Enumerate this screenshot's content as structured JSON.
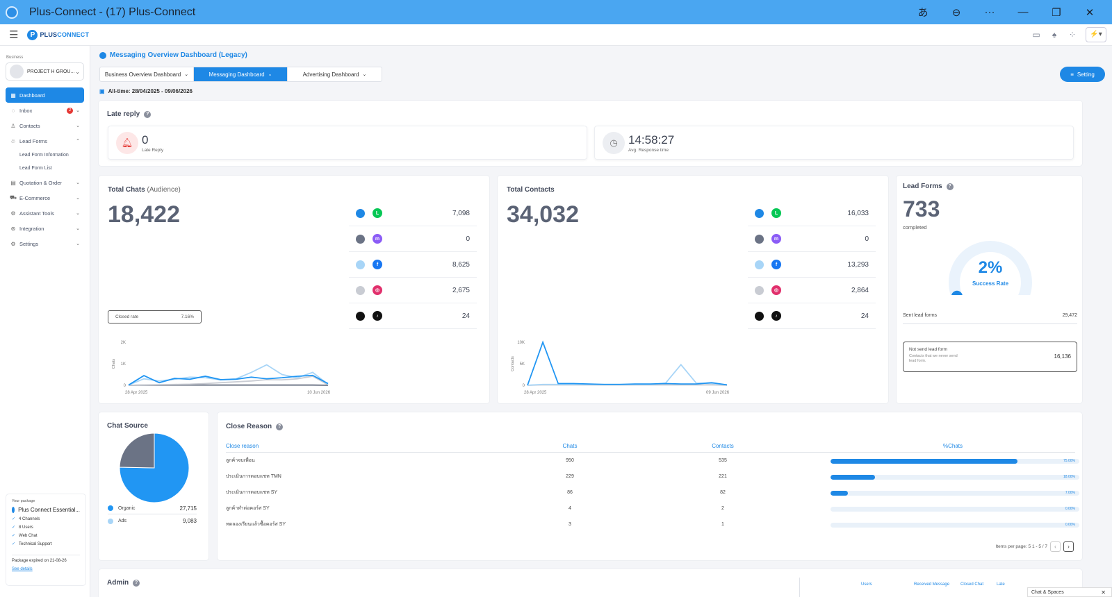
{
  "window": {
    "title": "Plus-Connect - (17) Plus-Connect",
    "controls": [
      "あ",
      "⊖",
      "···",
      "—",
      "❐",
      "✕"
    ]
  },
  "topbar": {
    "logo_mark": "P",
    "logo_left": "PLUS",
    "logo_right": "CONNECT"
  },
  "sidebar": {
    "business_label": "Business",
    "business_name": "PROJECT H GROU...",
    "items": [
      {
        "label": "Dashboard",
        "icon": "grid-icon"
      },
      {
        "label": "Inbox",
        "icon": "chat-icon",
        "badge": "2"
      },
      {
        "label": "Contacts",
        "icon": "person-icon"
      },
      {
        "label": "Lead Forms",
        "icon": "form-icon"
      },
      {
        "label": "Quotation & Order",
        "icon": "doc-icon"
      },
      {
        "label": "E-Commerce",
        "icon": "cart-icon"
      },
      {
        "label": "Assistant Tools",
        "icon": "tools-icon"
      },
      {
        "label": "Integration",
        "icon": "gear-icon"
      },
      {
        "label": "Settings",
        "icon": "settings-icon"
      }
    ],
    "lead_form_sub": [
      "Lead Form Information",
      "Lead Form List"
    ],
    "package": {
      "label": "Your package",
      "name": "Plus Connect Essential...",
      "features": [
        "4 Channels",
        "8 Users",
        "Web Chat",
        "Technical Support"
      ],
      "expiry": "Package expired on 21-08-26",
      "link": "See details"
    }
  },
  "main": {
    "title": "Messaging Overview Dashboard (Legacy)",
    "tabs": [
      "Business Overview Dashboard",
      "Messaging Dashboard",
      "Advertising Dashboard"
    ],
    "setting_label": "Setting",
    "date_range": "All-time: 28/04/2025 - 09/06/2026"
  },
  "late_reply": {
    "title": "Late reply",
    "late_value": "0",
    "late_label": "Late Reply",
    "avg_value": "14:58:27",
    "avg_label": "Avg. Response time"
  },
  "total_chats": {
    "title": "Total Chats",
    "title_suffix": "(Audience)",
    "total": "18,422",
    "channels": [
      "7,098",
      "0",
      "8,625",
      "2,675",
      "24"
    ],
    "closed_rate_label": "Closed rate",
    "closed_rate_value": "7.16%",
    "y_axis_title": "Chats",
    "y_ticks": [
      "2K",
      "1K",
      "0"
    ],
    "x_ticks": [
      "28 Apr 2025",
      "10 Jun 2026"
    ]
  },
  "total_contacts": {
    "title": "Total Contacts",
    "total": "34,032",
    "channels": [
      "16,033",
      "0",
      "13,293",
      "2,864",
      "24"
    ],
    "y_axis_title": "Contacts",
    "y_ticks": [
      "10K",
      "5K",
      "0"
    ],
    "x_ticks": [
      "28 Apr 2025",
      "09 Jun 2026"
    ]
  },
  "channel_styles": [
    {
      "name": "LINE",
      "dot": "#1e88e5",
      "icon_bg": "#06c755",
      "glyph": "L"
    },
    {
      "name": "Messenger",
      "dot": "#6b7385",
      "icon_bg": "#8b5cf6",
      "glyph": "m"
    },
    {
      "name": "Facebook",
      "dot": "#a8d5f7",
      "icon_bg": "#1877f2",
      "glyph": "f"
    },
    {
      "name": "Instagram",
      "dot": "#c9ccd3",
      "icon_bg": "#e1306c",
      "glyph": "◎"
    },
    {
      "name": "TikTok",
      "dot": "#111111",
      "icon_bg": "#111111",
      "glyph": "♪"
    }
  ],
  "lead_forms": {
    "title": "Lead Forms",
    "total": "733",
    "sub": "completed",
    "gauge_value": "2%",
    "gauge_fraction": 0.02,
    "gauge_label": "Success Rate",
    "sent_label": "Sent lead forms",
    "sent_value": "29,472",
    "not_sent_label": "Not send lead form",
    "not_sent_desc": "Contacts that we never send lead form.",
    "not_sent_value": "16,136"
  },
  "chat_source": {
    "title": "Chat Source",
    "items": [
      {
        "label": "Organic",
        "value": "27,715",
        "color": "#2196f3"
      },
      {
        "label": "Ads",
        "value": "9,083",
        "color": "#a8d5f7"
      }
    ]
  },
  "close_reason": {
    "title": "Close Reason",
    "headers": [
      "Close reason",
      "Chats",
      "Contacts",
      "%Chats"
    ],
    "rows": [
      {
        "reason": "ลูกค้าจบเพื่อน",
        "chats": "950",
        "contacts": "535",
        "pct": "75.00%",
        "pct_value": 0.75
      },
      {
        "reason": "ประเมินการตอบแชท TMN",
        "chats": "229",
        "contacts": "221",
        "pct": "18.00%",
        "pct_value": 0.18
      },
      {
        "reason": "ประเมินการตอบแชท SY",
        "chats": "86",
        "contacts": "82",
        "pct": "7.00%",
        "pct_value": 0.07
      },
      {
        "reason": "ลูกค้าทำต่อคอร์ส SY",
        "chats": "4",
        "contacts": "2",
        "pct": "0.00%",
        "pct_value": 0
      },
      {
        "reason": "ทดลองเรียนแล้วซื้อคอร์ส SY",
        "chats": "3",
        "contacts": "1",
        "pct": "0.00%",
        "pct_value": 0
      }
    ],
    "items_per_page_label": "Items per page:",
    "items_per_page": "5",
    "range": "1 - 5 / 7"
  },
  "admin": {
    "title": "Admin",
    "headers": [
      "Users",
      "Received Message",
      "Closed Chat",
      "Late"
    ]
  },
  "chat_spaces": "Chat & Spaces",
  "chart_data": [
    {
      "type": "line",
      "x": [
        "28 Apr 2025",
        "",
        "",
        "",
        "",
        "",
        "",
        "",
        "",
        "",
        "",
        "",
        "",
        "10 Jun 2026"
      ],
      "ylabel": "Chats",
      "ylim": [
        0,
        2000
      ],
      "series": [
        {
          "values": [
            10,
            450,
            120,
            320,
            280,
            420,
            260,
            280,
            380,
            300,
            350,
            420,
            460,
            80
          ],
          "color": "#2196f3"
        },
        {
          "values": [
            10,
            300,
            200,
            280,
            380,
            350,
            250,
            300,
            600,
            950,
            500,
            350,
            600,
            40
          ],
          "color": "#a8d5f7"
        },
        {
          "values": [
            0,
            20,
            30,
            40,
            50,
            80,
            120,
            160,
            200,
            260,
            250,
            300,
            420,
            20
          ],
          "color": "#c9ccd3"
        },
        {
          "values": [
            0,
            10,
            10,
            10,
            10,
            10,
            10,
            10,
            10,
            10,
            10,
            10,
            10,
            0
          ],
          "color": "#6b7385"
        }
      ]
    },
    {
      "type": "line",
      "x": [
        "28 Apr 2025",
        "",
        "",
        "",
        "",
        "",
        "",
        "",
        "",
        "",
        "",
        "",
        "",
        "09 Jun 2026"
      ],
      "ylabel": "Contacts",
      "ylim": [
        0,
        10000
      ],
      "series": [
        {
          "values": [
            0,
            10000,
            400,
            400,
            300,
            200,
            200,
            300,
            300,
            400,
            300,
            300,
            600,
            100
          ],
          "color": "#2196f3"
        },
        {
          "values": [
            0,
            200,
            200,
            200,
            200,
            200,
            200,
            200,
            200,
            500,
            4800,
            500,
            400,
            100
          ],
          "color": "#a8d5f7"
        },
        {
          "values": [
            0,
            100,
            100,
            100,
            100,
            100,
            100,
            100,
            100,
            100,
            100,
            100,
            100,
            0
          ],
          "color": "#c9ccd3"
        }
      ]
    },
    {
      "type": "pie",
      "categories": [
        "Organic",
        "Ads"
      ],
      "values": [
        27715,
        9083
      ],
      "colors": [
        "#2196f3",
        "#6b7385"
      ]
    }
  ]
}
